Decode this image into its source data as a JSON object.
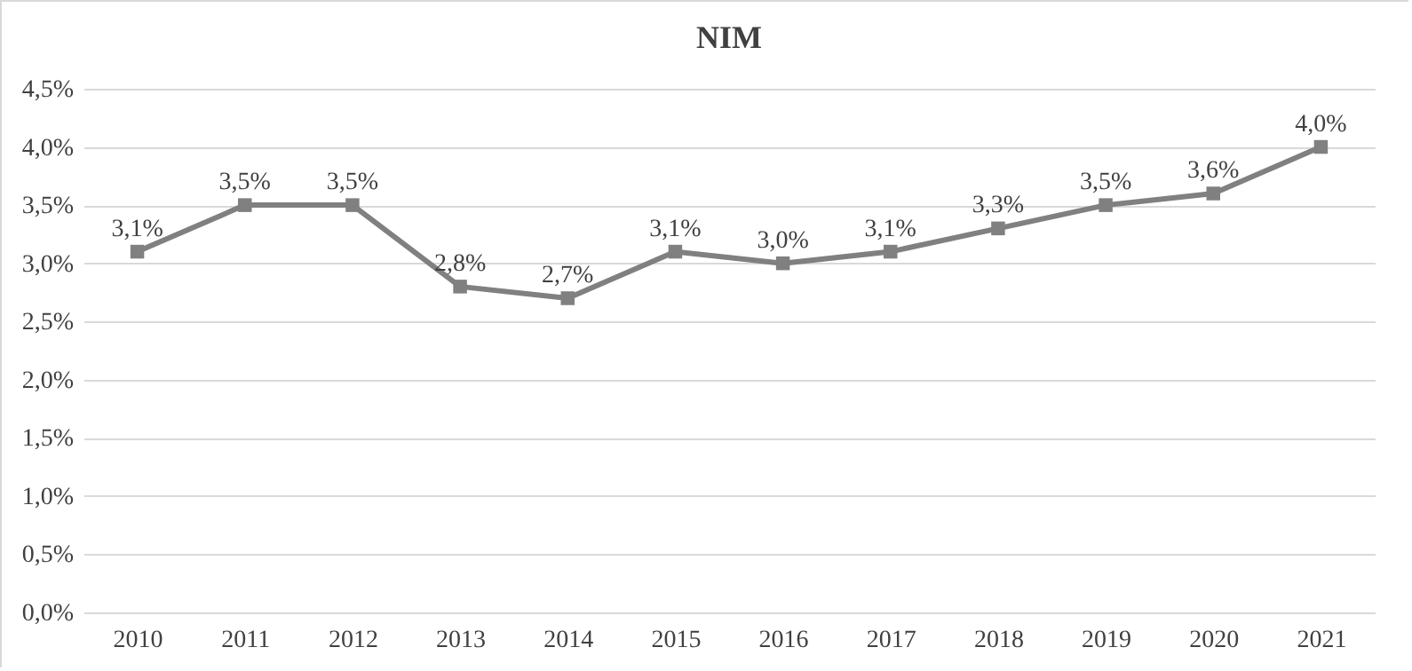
{
  "chart_data": {
    "type": "line",
    "title": "NIM",
    "categories": [
      "2010",
      "2011",
      "2012",
      "2013",
      "2014",
      "2015",
      "2016",
      "2017",
      "2018",
      "2019",
      "2020",
      "2021"
    ],
    "series": [
      {
        "color": "#808080",
        "values": [
          3.1,
          3.5,
          3.5,
          2.8,
          2.7,
          3.1,
          3.0,
          3.1,
          3.3,
          3.5,
          3.6,
          4.0
        ],
        "value_labels": [
          "3,1%",
          "3,5%",
          "3,5%",
          "2,8%",
          "2,7%",
          "3,1%",
          "3,0%",
          "3,1%",
          "3,3%",
          "3,5%",
          "3,6%",
          "4,0%"
        ]
      }
    ],
    "ylim": [
      0,
      4.5
    ],
    "yticks": [
      {
        "value": 0,
        "label": "0,0%"
      },
      {
        "value": 0.5,
        "label": "0,5%"
      },
      {
        "value": 1,
        "label": "1,0%"
      },
      {
        "value": 1.5,
        "label": "1,5%"
      },
      {
        "value": 2,
        "label": "2,0%"
      },
      {
        "value": 2.5,
        "label": "2,5%"
      },
      {
        "value": 3,
        "label": "3,0%"
      },
      {
        "value": 3.5,
        "label": "3,5%"
      },
      {
        "value": 4,
        "label": "4,0%"
      },
      {
        "value": 4.5,
        "label": "4,5%"
      }
    ],
    "grid": "y",
    "marker": "square",
    "line_style": "solid"
  }
}
